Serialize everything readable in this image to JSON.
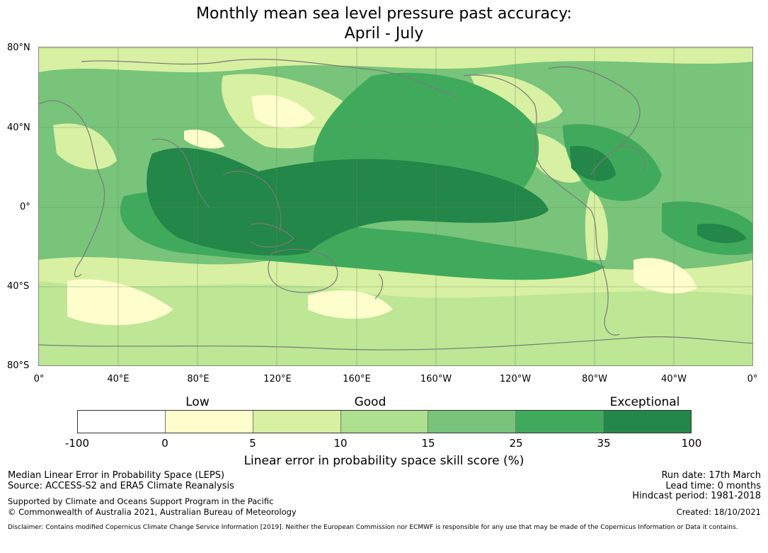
{
  "title": {
    "line1": "Monthly mean sea level pressure past accuracy:",
    "line2": "April - July"
  },
  "map": {
    "lat_labels": [
      "80°N",
      "40°N",
      "0°",
      "40°S",
      "80°S"
    ],
    "lon_labels": [
      "0°",
      "40°E",
      "80°E",
      "120°E",
      "160°E",
      "160°W",
      "120°W",
      "80°W",
      "40°W",
      "0°"
    ],
    "coastline_color": "#7a7a7a"
  },
  "legend": {
    "categories": [
      "Low",
      "Good",
      "Exceptional"
    ],
    "ticks": [
      "-100",
      "0",
      "5",
      "10",
      "15",
      "25",
      "35",
      "100"
    ],
    "colors": [
      "#ffffff",
      "#fefdcc",
      "#d8f0a1",
      "#acdf8e",
      "#78c47a",
      "#40aa5c",
      "#228748"
    ],
    "title": "Linear error in probability space skill score (%)"
  },
  "footer": {
    "metric": "Median Linear Error in Probability Space (LEPS)",
    "source": "Source: ACCESS-S2 and ERA5 Climate Reanalysis",
    "support": "Supported by Climate and Oceans Support Program in the Pacific",
    "copyright": "© Commonwealth of Australia 2021, Australian Bureau of Meteorology",
    "run_date": "Run date: 17th March",
    "lead_time": "Lead time: 0 months",
    "hindcast": "Hindcast period: 1981-2018",
    "created": "Created: 18/10/2021",
    "disclaimer": "Disclaimer: Contains modified Copernicus Climate Change Service Information [2019]. Neither the European Commission nor ECMWF is responsible for any use that may be made of the Copernicus Information or Data it contains."
  }
}
